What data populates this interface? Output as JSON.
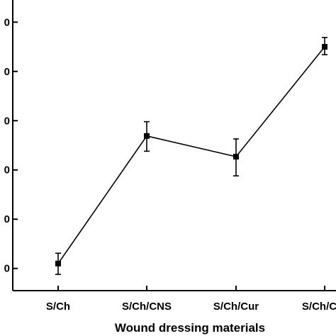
{
  "chart_data": {
    "type": "line",
    "title": "",
    "xlabel": "Wound dressing materials",
    "ylabel": "",
    "categories": [
      "S/Ch",
      "S/Ch/CNS",
      "S/Ch/Cur",
      "S/Ch/Cur"
    ],
    "y_tick_labels": [
      "0",
      "0",
      "0",
      "0",
      "0",
      "0"
    ],
    "y_tick_values": [
      1,
      2,
      3,
      4,
      5,
      6
    ],
    "ylim": [
      0.55,
      6.45
    ],
    "grid": false,
    "series": [
      {
        "values": [
          1.1,
          3.69,
          3.27,
          5.5
        ],
        "error_low": [
          0.88,
          3.38,
          2.88,
          5.34
        ],
        "error_high": [
          1.31,
          3.98,
          3.63,
          5.69
        ],
        "color": "#000000",
        "marker": "square"
      }
    ]
  }
}
